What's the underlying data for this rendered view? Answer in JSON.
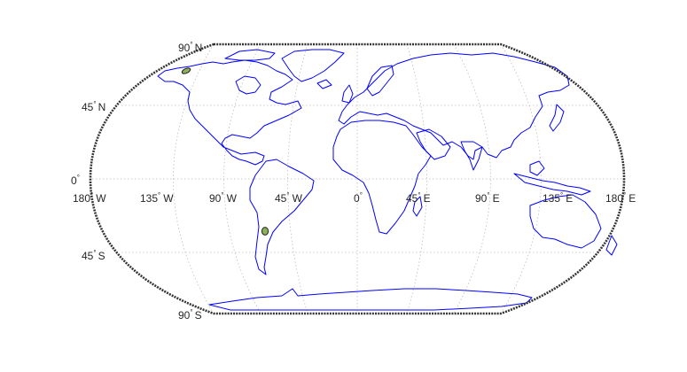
{
  "map": {
    "projection": "Robinson",
    "grid": true,
    "colors": {
      "coastline": "#0000ff",
      "frame": "#333333",
      "graticule": "#bdbdbd",
      "marker_fill": "#8db15a",
      "text": "#262626"
    },
    "lat_labels": [
      {
        "id": "lat-90n",
        "num": "90",
        "hemi": "N"
      },
      {
        "id": "lat-45n",
        "num": "45",
        "hemi": "N"
      },
      {
        "id": "lat-0",
        "num": "0",
        "hemi": ""
      },
      {
        "id": "lat-45s",
        "num": "45",
        "hemi": "S"
      },
      {
        "id": "lat-90s",
        "num": "90",
        "hemi": "S"
      }
    ],
    "lon_labels": [
      {
        "id": "lon-180w",
        "num": "180",
        "hemi": "W"
      },
      {
        "id": "lon-135w",
        "num": "135",
        "hemi": "W"
      },
      {
        "id": "lon-90w",
        "num": "90",
        "hemi": "W"
      },
      {
        "id": "lon-45w",
        "num": "45",
        "hemi": "W"
      },
      {
        "id": "lon-0",
        "num": "0",
        "hemi": ""
      },
      {
        "id": "lon-45e",
        "num": "45",
        "hemi": "E"
      },
      {
        "id": "lon-90e",
        "num": "90",
        "hemi": "E"
      },
      {
        "id": "lon-135e",
        "num": "135",
        "hemi": "E"
      },
      {
        "id": "lon-180e",
        "num": "180",
        "hemi": "E"
      }
    ],
    "markers": [
      {
        "id": "marker-alaska"
      },
      {
        "id": "marker-south-america"
      }
    ]
  }
}
